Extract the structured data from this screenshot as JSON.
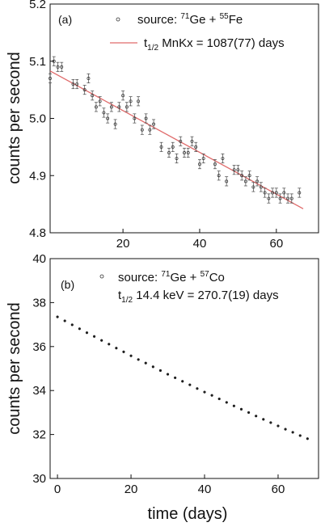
{
  "chart_data": [
    {
      "type": "scatter",
      "panel_label": "(a)",
      "ylabel": "counts per second",
      "xlabel": "",
      "xlim": [
        1,
        71
      ],
      "ylim": [
        4.8,
        5.2
      ],
      "x_ticks": [
        20,
        40,
        60
      ],
      "x_tick_labels": [
        "20",
        "40",
        "60"
      ],
      "y_ticks": [
        4.8,
        4.9,
        5.0,
        5.1,
        5.2
      ],
      "y_tick_labels": [
        "4.8",
        "4.9",
        "5.0",
        "5.1",
        "5.2"
      ],
      "legend_position": "top-right",
      "legend": [
        {
          "kind": "marker",
          "parts": [
            "source: ",
            "71",
            "Ge + ",
            "55",
            "Fe"
          ]
        },
        {
          "kind": "line",
          "parts": [
            "t",
            "1/2",
            " MnKx = 1087(77) days"
          ]
        }
      ],
      "series": [
        {
          "kind": "scatter",
          "x": [
            1,
            2,
            3,
            4,
            7,
            8,
            10,
            11,
            12,
            13,
            14,
            15,
            16,
            17,
            18,
            19,
            20,
            21,
            22,
            23,
            24,
            25,
            26,
            27,
            28,
            30,
            32,
            33,
            34,
            35,
            36,
            37,
            38,
            39,
            40,
            41,
            44,
            45,
            46,
            47,
            49,
            50,
            51,
            52,
            53,
            54,
            55,
            56,
            57,
            58,
            59,
            60,
            61,
            62,
            63,
            64,
            66
          ],
          "y": [
            5.07,
            5.1,
            5.09,
            5.09,
            5.06,
            5.06,
            5.05,
            5.07,
            5.04,
            5.02,
            5.03,
            5.01,
            5.0,
            5.02,
            4.99,
            5.02,
            5.04,
            5.02,
            5.03,
            5.0,
            5.03,
            4.98,
            5.0,
            4.98,
            4.99,
            4.95,
            4.94,
            4.95,
            4.93,
            4.96,
            4.94,
            4.94,
            4.96,
            4.95,
            4.92,
            4.93,
            4.92,
            4.9,
            4.93,
            4.89,
            4.91,
            4.91,
            4.9,
            4.89,
            4.9,
            4.88,
            4.89,
            4.88,
            4.87,
            4.86,
            4.87,
            4.87,
            4.86,
            4.87,
            4.86,
            4.86,
            4.87
          ],
          "error": 0.008
        },
        {
          "kind": "fit-line",
          "color": "#e06b6b",
          "x": [
            1,
            67
          ],
          "y": [
            5.083,
            4.842
          ]
        }
      ]
    },
    {
      "type": "scatter",
      "panel_label": "(b)",
      "ylabel": "counts per second",
      "xlabel": "time (days)",
      "xlim": [
        -2,
        71
      ],
      "ylim": [
        30,
        40
      ],
      "x_ticks": [
        0,
        20,
        40,
        60
      ],
      "x_tick_labels": [
        "0",
        "20",
        "40",
        "60"
      ],
      "y_ticks": [
        30,
        32,
        34,
        36,
        38,
        40
      ],
      "y_tick_labels": [
        "30",
        "32",
        "34",
        "36",
        "38",
        "40"
      ],
      "legend_position": "top-right",
      "legend": [
        {
          "kind": "marker",
          "parts": [
            "source: ",
            "71",
            "Ge + ",
            "57",
            "Co"
          ]
        },
        {
          "kind": "text",
          "parts": [
            "t",
            "1/2",
            " 14.4 keV = 270.7(19) days"
          ]
        }
      ],
      "series": [
        {
          "kind": "scatter",
          "x": [
            0,
            2,
            4,
            6,
            8,
            10,
            12,
            14,
            16,
            18,
            20,
            22,
            24,
            26,
            28,
            30,
            32,
            34,
            36,
            38,
            40,
            42,
            44,
            46,
            48,
            50,
            52,
            54,
            56,
            58,
            60,
            62,
            64,
            66,
            68
          ],
          "y": [
            37.35,
            37.17,
            36.99,
            36.81,
            36.63,
            36.46,
            36.28,
            36.11,
            35.93,
            35.76,
            35.58,
            35.41,
            35.25,
            35.08,
            34.91,
            34.74,
            34.58,
            34.42,
            34.26,
            34.09,
            33.93,
            33.78,
            33.62,
            33.46,
            33.3,
            33.15,
            33.0,
            32.84,
            32.69,
            32.54,
            32.39,
            32.24,
            32.1,
            31.95,
            31.81
          ]
        }
      ]
    }
  ]
}
